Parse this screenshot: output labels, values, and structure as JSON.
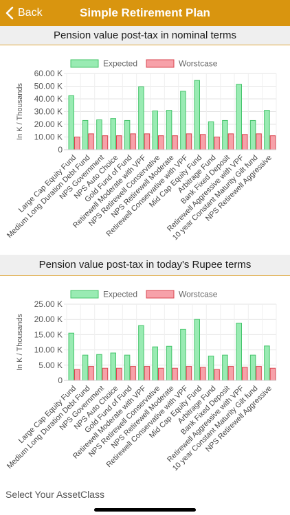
{
  "nav": {
    "back_label": "Back",
    "title": "Simple Retirement Plan"
  },
  "categories": [
    "Large Cap Equity Fund",
    "Medium Long Duration Debt Fund",
    "NPS Government",
    "NPS Auto Choice",
    "Gold Fund of Fund",
    "Retirewell Moderate with VPF",
    "NPS Retirewell Conservative",
    "NPS Retirewell Moderate",
    "Retirewell Conservative with VPF",
    "Mid Cap Equity Fund",
    "Arbitrage Fund",
    "Bank Fixed Deposit",
    "Retirewell Aggressive with VPF",
    "10 year Constant Maturity Gilt fund",
    "NPS Retirewell Aggressive"
  ],
  "colors": {
    "expected_fill": "#99ebb3",
    "expected_stroke": "#44c46a",
    "worst_fill": "#f7a1a9",
    "worst_stroke": "#d9454f",
    "nav": "#d9950f"
  },
  "chart_data": [
    {
      "type": "bar",
      "title": "Pension value post-tax in nominal terms",
      "ylabel": "In K / Thousands",
      "ylim": [
        0,
        60
      ],
      "yticks": [
        "0",
        "10.00 K",
        "20.00 K",
        "30.00 K",
        "40.00 K",
        "50.00 K",
        "60.00 K"
      ],
      "tick_values": [
        0,
        10,
        20,
        30,
        40,
        50,
        60
      ],
      "legend_position": "top-center",
      "series": [
        {
          "name": "Expected",
          "values": [
            42.5,
            23.0,
            23.5,
            24.5,
            23.0,
            49.5,
            30.5,
            31.0,
            46.0,
            54.5,
            22.0,
            23.0,
            51.5,
            23.0,
            31.0
          ]
        },
        {
          "name": "Worstcase",
          "values": [
            10.0,
            12.5,
            11.0,
            11.0,
            12.5,
            12.5,
            11.0,
            11.0,
            12.5,
            12.0,
            10.0,
            12.5,
            12.0,
            12.5,
            11.0
          ]
        }
      ]
    },
    {
      "type": "bar",
      "title": "Pension value post-tax in today's Rupee terms",
      "ylabel": "In K / Thousands",
      "ylim": [
        0,
        25
      ],
      "yticks": [
        "0",
        "5.00 K",
        "10.00 K",
        "15.00 K",
        "20.00 K",
        "25.00 K"
      ],
      "tick_values": [
        0,
        5,
        10,
        15,
        20,
        25
      ],
      "legend_position": "top-center",
      "series": [
        {
          "name": "Expected",
          "values": [
            15.5,
            8.3,
            8.5,
            9.0,
            8.3,
            18.0,
            11.0,
            11.2,
            16.8,
            20.0,
            8.0,
            8.3,
            18.8,
            8.3,
            11.3
          ]
        },
        {
          "name": "Worstcase",
          "values": [
            3.6,
            4.6,
            4.0,
            4.0,
            4.6,
            4.6,
            4.0,
            4.0,
            4.6,
            4.3,
            3.6,
            4.6,
            4.3,
            4.6,
            4.0
          ]
        }
      ]
    }
  ],
  "footer": {
    "text": "Select Your AssetClass"
  }
}
